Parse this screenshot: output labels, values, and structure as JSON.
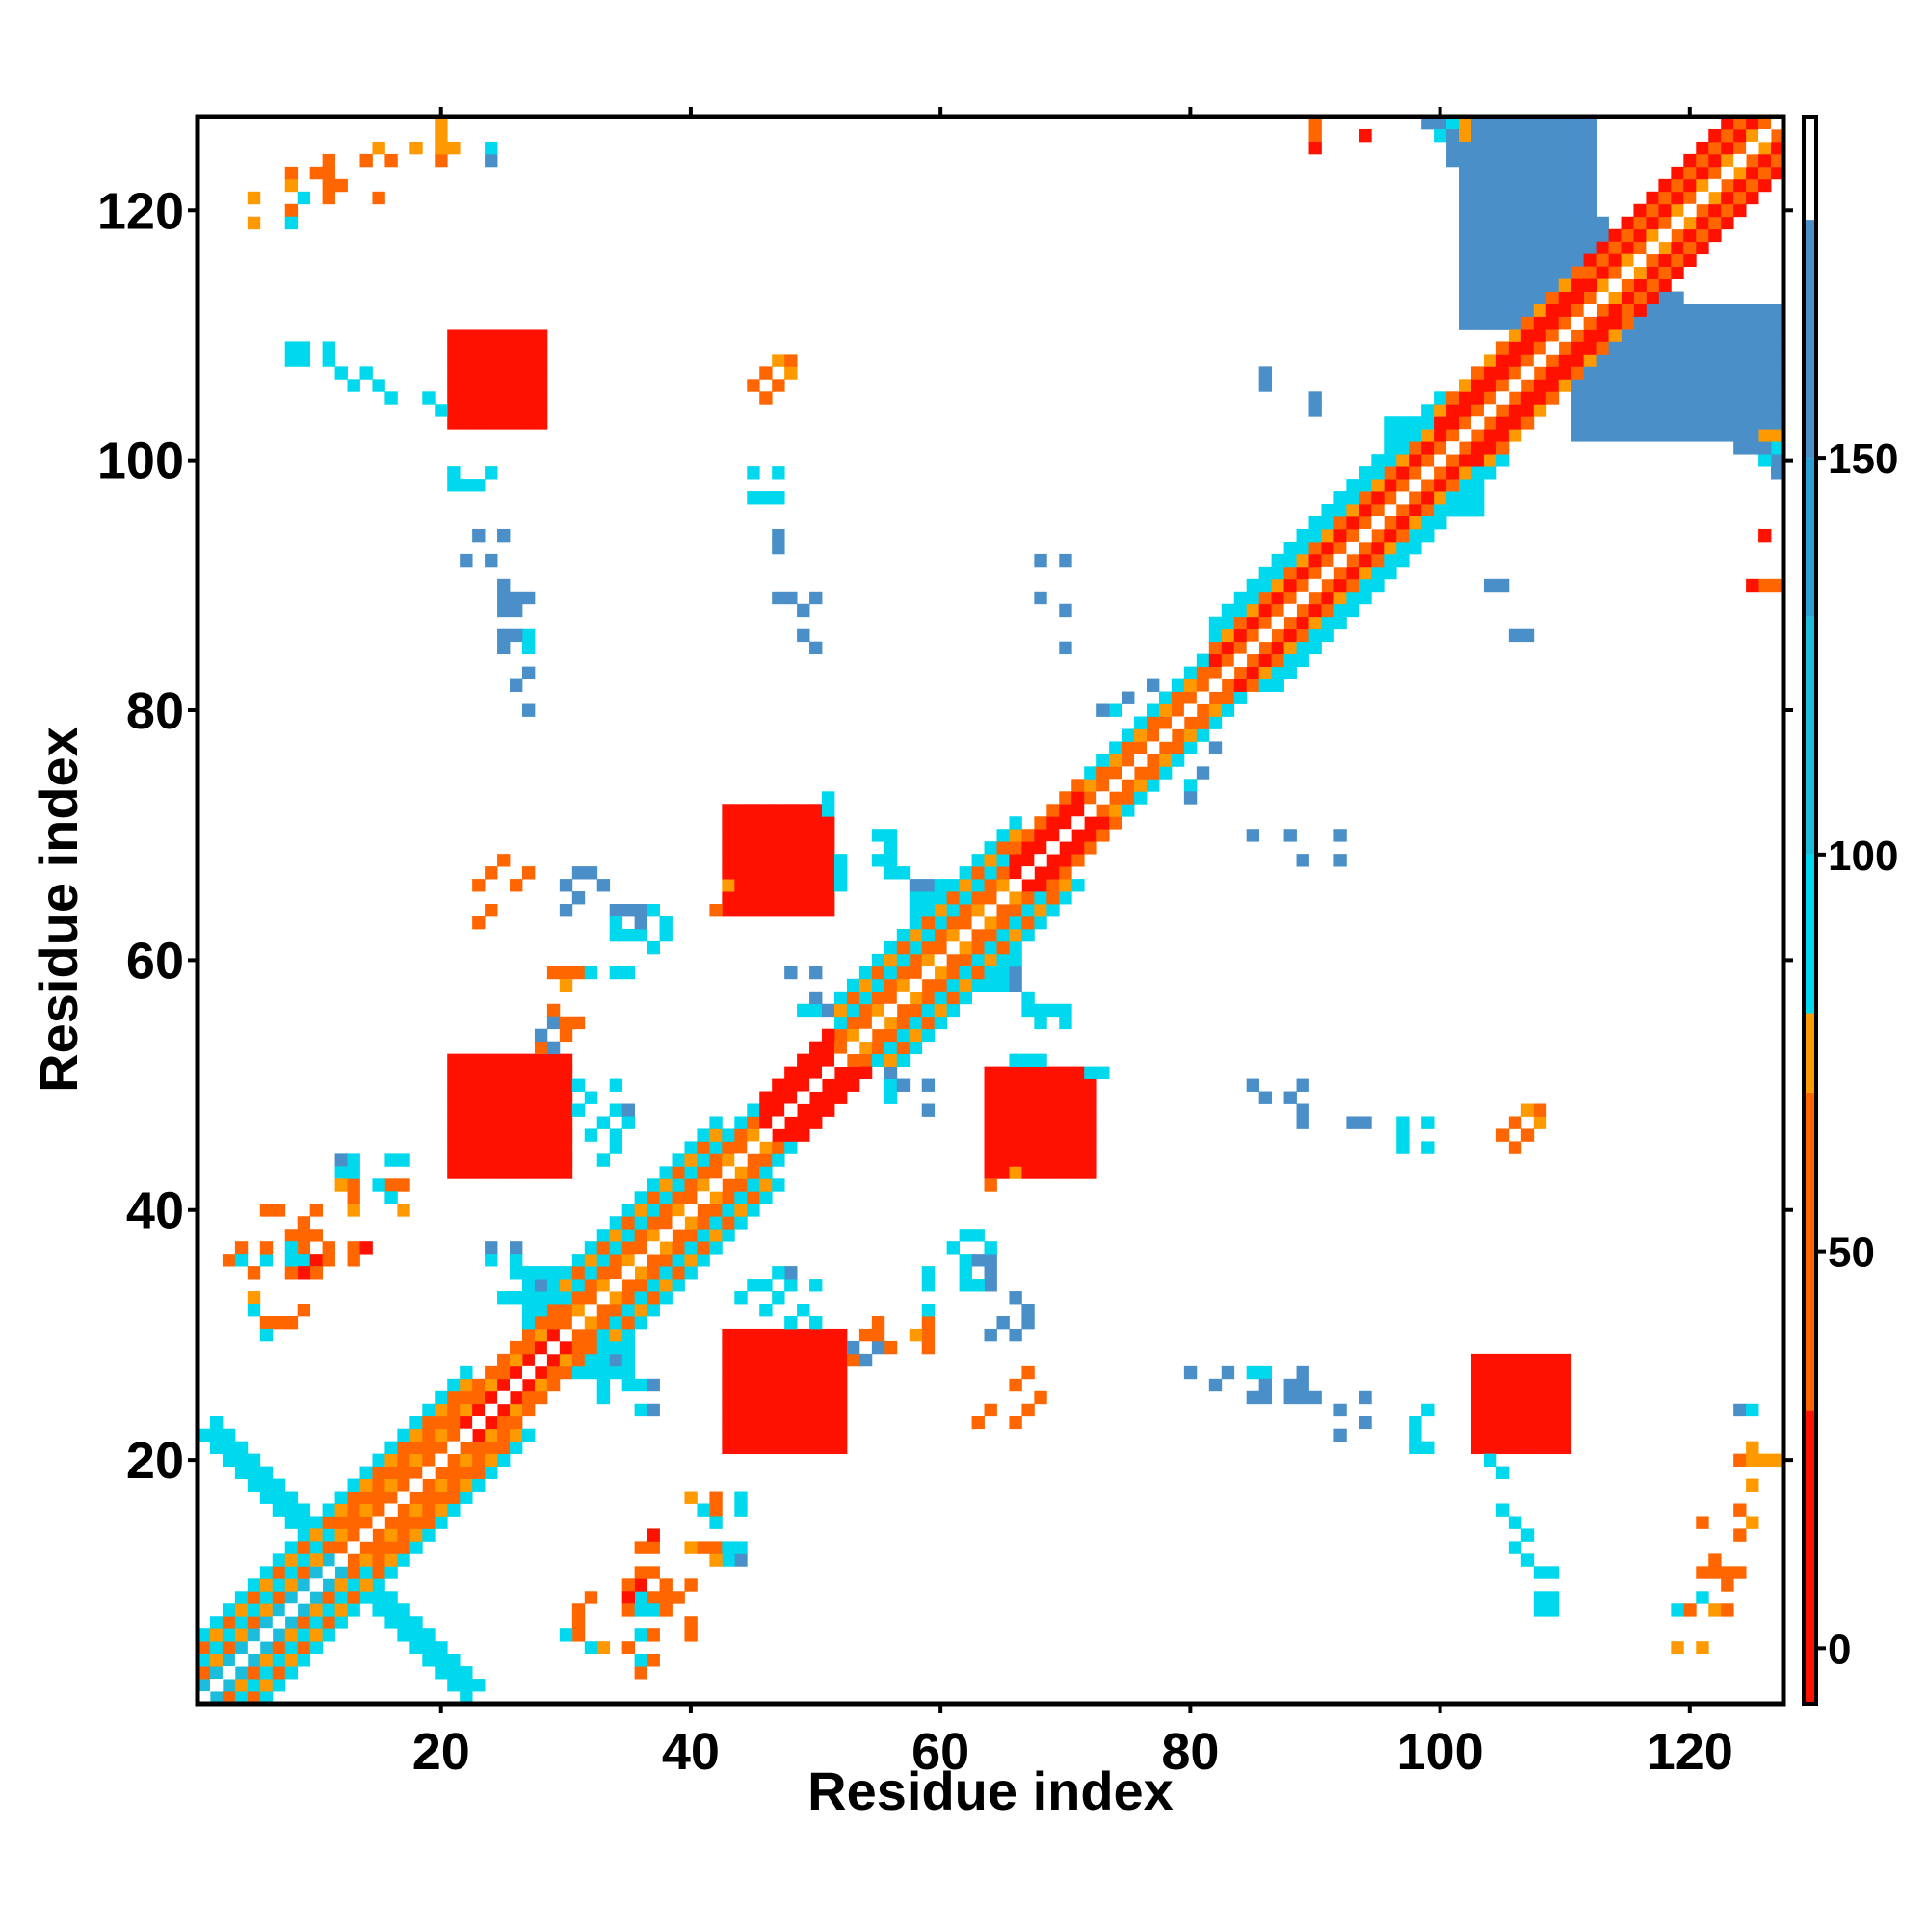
{
  "chart_data": {
    "type": "heatmap",
    "title": "",
    "xlabel": "Residue index",
    "ylabel": "Residue index",
    "xlim": [
      1,
      127
    ],
    "ylim": [
      1,
      127
    ],
    "x_ticks": [
      "20",
      "40",
      "60",
      "80",
      "100",
      "120"
    ],
    "y_ticks": [
      "20",
      "40",
      "60",
      "80",
      "100",
      "120"
    ],
    "colorbar": {
      "ticks": [
        "0",
        "50",
        "100",
        "150"
      ],
      "range": [
        -7,
        193
      ],
      "segments": [
        {
          "from": -7,
          "to": 30,
          "color": "#ff1100"
        },
        {
          "from": 30,
          "to": 70,
          "color": "#ff6600"
        },
        {
          "from": 70,
          "to": 80,
          "color": "#ff9900"
        },
        {
          "from": 80,
          "to": 100,
          "color": "#00d8ee"
        },
        {
          "from": 100,
          "to": 130,
          "color": "#1cbcdc"
        },
        {
          "from": 130,
          "to": 150,
          "color": "#2a9fd4"
        },
        {
          "from": 150,
          "to": 180,
          "color": "#4a8fc8"
        },
        {
          "from": 180,
          "to": 193,
          "color": "#ffffff"
        }
      ]
    },
    "grid": false,
    "legend": "colorbar-right",
    "diagonal_bands": [
      {
        "from": 1,
        "to": 12,
        "offsets": {
          "1": 100,
          "2": 65,
          "3": 90,
          "4": 60,
          "5": 90
        }
      },
      {
        "from": 12,
        "to": 22,
        "offsets": {
          "1": 40,
          "2": 60,
          "3": 30,
          "4": 60,
          "5": 90
        }
      },
      {
        "from": 22,
        "to": 30,
        "offsets": {
          "1": 10,
          "2": 60,
          "3": 40
        }
      },
      {
        "from": 30,
        "to": 42,
        "offsets": {
          "1": 60,
          "2": 40,
          "3": 90,
          "4": 60,
          "5": 90
        }
      },
      {
        "from": 42,
        "to": 50,
        "offsets": {
          "1": 60,
          "2": 40,
          "3": 90
        }
      },
      {
        "from": 46,
        "to": 52,
        "offsets": {
          "1": 10,
          "2": 5,
          "3": 20
        }
      },
      {
        "from": 52,
        "to": 66,
        "offsets": {
          "1": 60,
          "2": 40,
          "3": 90,
          "4": 60,
          "5": 90
        }
      },
      {
        "from": 66,
        "to": 72,
        "offsets": {
          "1": 10,
          "2": 20,
          "3": 40
        }
      },
      {
        "from": 72,
        "to": 82,
        "offsets": {
          "1": 40,
          "2": 60,
          "3": 90
        }
      },
      {
        "from": 82,
        "to": 100,
        "offsets": {
          "1": 40,
          "2": 20,
          "3": 60,
          "4": 90,
          "5": 90
        }
      },
      {
        "from": 100,
        "to": 112,
        "offsets": {
          "1": 40,
          "2": 20,
          "3": 10,
          "4": 60
        }
      },
      {
        "from": 112,
        "to": 127,
        "offsets": {
          "1": 60,
          "2": 10,
          "3": 40,
          "4": 10
        }
      }
    ],
    "antiparallel_bands": [
      {
        "x_from": 102,
        "x_to": 127,
        "y_from": 127,
        "y_to": 101,
        "value": 160,
        "width": 3
      },
      {
        "x_from": 2,
        "x_to": 22,
        "y_from": 22,
        "y_to": 2,
        "value": 95,
        "width": 1
      }
    ],
    "patches": [
      {
        "x": [
          22,
          28
        ],
        "y": [
          103,
          110
        ],
        "value": 20
      },
      {
        "x": [
          44,
          51
        ],
        "y": [
          22,
          30
        ],
        "value": 20
      },
      {
        "x": [
          45,
          51
        ],
        "y": [
          64,
          72
        ],
        "value": 20
      },
      {
        "x": [
          21,
          30
        ],
        "y": [
          43,
          52
        ],
        "value": 20
      },
      {
        "x": [
          64,
          72
        ],
        "y": [
          43,
          51
        ],
        "value": 20
      },
      {
        "x": [
          103,
          110
        ],
        "y": [
          21,
          28
        ],
        "value": 20
      },
      {
        "x": [
          102,
          112
        ],
        "y": [
          111,
          127
        ],
        "value": 160
      },
      {
        "x": [
          96,
          100
        ],
        "y": [
          96,
          103
        ],
        "value": 95
      },
      {
        "x": [
          27,
          33
        ],
        "y": [
          28,
          35
        ],
        "value": 95
      },
      {
        "x": [
          60,
          66
        ],
        "y": [
          58,
          65
        ],
        "value": 95
      }
    ],
    "points": [
      [
        5,
        119,
        70
      ],
      [
        8,
        120,
        60
      ],
      [
        8,
        119,
        95
      ],
      [
        11,
        121,
        60
      ],
      [
        12,
        122,
        60
      ],
      [
        15,
        121,
        60
      ],
      [
        16,
        124,
        60
      ],
      [
        20,
        124,
        60
      ],
      [
        21,
        125,
        70
      ],
      [
        24,
        124,
        150
      ],
      [
        8,
        108,
        95
      ],
      [
        9,
        108,
        95
      ],
      [
        12,
        107,
        95
      ],
      [
        13,
        106,
        95
      ],
      [
        15,
        106,
        95
      ],
      [
        16,
        105,
        95
      ],
      [
        19,
        105,
        95
      ],
      [
        20,
        104,
        95
      ],
      [
        23,
        98,
        95
      ],
      [
        24,
        99,
        95
      ],
      [
        25,
        94,
        150
      ],
      [
        23,
        94,
        150
      ],
      [
        25,
        90,
        150
      ],
      [
        26,
        89,
        150
      ],
      [
        27,
        89,
        150
      ],
      [
        25,
        86,
        150
      ],
      [
        27,
        86,
        95
      ],
      [
        27,
        85,
        95
      ],
      [
        27,
        83,
        150
      ],
      [
        45,
        106,
        60
      ],
      [
        46,
        107,
        60
      ],
      [
        47,
        108,
        70
      ],
      [
        45,
        99,
        95
      ],
      [
        47,
        99,
        95
      ],
      [
        47,
        94,
        150
      ],
      [
        47,
        89,
        150
      ],
      [
        48,
        89,
        150
      ],
      [
        50,
        89,
        150
      ],
      [
        49,
        88,
        95
      ],
      [
        49,
        86,
        150
      ],
      [
        50,
        85,
        150
      ],
      [
        68,
        92,
        150
      ],
      [
        70,
        92,
        150
      ],
      [
        68,
        89,
        150
      ],
      [
        70,
        88,
        150
      ],
      [
        70,
        85,
        150
      ],
      [
        86,
        107,
        150
      ],
      [
        90,
        105,
        150
      ],
      [
        104,
        90,
        150
      ],
      [
        106,
        86,
        150
      ],
      [
        90,
        126,
        60
      ],
      [
        90,
        125,
        20
      ],
      [
        94,
        126,
        20
      ],
      [
        100,
        126,
        95
      ],
      [
        102,
        126,
        70
      ],
      [
        126,
        94,
        20
      ],
      [
        125,
        90,
        20
      ],
      [
        127,
        90,
        60
      ],
      [
        127,
        101,
        95
      ],
      [
        127,
        102,
        70
      ],
      [
        25,
        68,
        60
      ],
      [
        24,
        67,
        60
      ],
      [
        23,
        66,
        60
      ],
      [
        31,
        67,
        150
      ],
      [
        31,
        65,
        150
      ],
      [
        34,
        64,
        150
      ],
      [
        35,
        64,
        150
      ],
      [
        34,
        62,
        95
      ],
      [
        36,
        62,
        95
      ],
      [
        37,
        61,
        95
      ],
      [
        36,
        64,
        95
      ],
      [
        37,
        64,
        95
      ],
      [
        42,
        64,
        60
      ],
      [
        34,
        59,
        95
      ],
      [
        35,
        59,
        95
      ],
      [
        29,
        59,
        60
      ],
      [
        30,
        59,
        70
      ],
      [
        30,
        58,
        60
      ],
      [
        29,
        56,
        60
      ],
      [
        29,
        55,
        150
      ],
      [
        30,
        55,
        95
      ],
      [
        30,
        54,
        95
      ],
      [
        28,
        53,
        60
      ],
      [
        31,
        50,
        95
      ],
      [
        32,
        49,
        95
      ],
      [
        34,
        50,
        95
      ],
      [
        34,
        48,
        95
      ],
      [
        35,
        48,
        150
      ],
      [
        35,
        47,
        150
      ],
      [
        48,
        59,
        150
      ],
      [
        49,
        56,
        95
      ],
      [
        50,
        56,
        95
      ],
      [
        51,
        56,
        95
      ],
      [
        52,
        54,
        95
      ],
      [
        55,
        70,
        95
      ],
      [
        56,
        69,
        95
      ],
      [
        56,
        68,
        95
      ],
      [
        57,
        67,
        95
      ],
      [
        58,
        66,
        150
      ],
      [
        59,
        66,
        150
      ],
      [
        60,
        66,
        95
      ],
      [
        61,
        66,
        95
      ],
      [
        61,
        64,
        95
      ],
      [
        62,
        63,
        95
      ],
      [
        56,
        51,
        150
      ],
      [
        57,
        50,
        150
      ],
      [
        59,
        50,
        150
      ],
      [
        59,
        48,
        150
      ],
      [
        67,
        56,
        95
      ],
      [
        68,
        56,
        95
      ],
      [
        70,
        56,
        95
      ],
      [
        68,
        55,
        95
      ],
      [
        66,
        52,
        95
      ],
      [
        67,
        52,
        95
      ],
      [
        68,
        52,
        95
      ],
      [
        72,
        51,
        95
      ],
      [
        73,
        51,
        95
      ],
      [
        63,
        58,
        60
      ],
      [
        66,
        43,
        70
      ],
      [
        85,
        70,
        150
      ],
      [
        88,
        70,
        150
      ],
      [
        89,
        68,
        150
      ],
      [
        92,
        70,
        150
      ],
      [
        92,
        68,
        150
      ],
      [
        85,
        50,
        150
      ],
      [
        86,
        49,
        150
      ],
      [
        88,
        49,
        150
      ],
      [
        89,
        48,
        150
      ],
      [
        89,
        47,
        150
      ],
      [
        93,
        47,
        150
      ],
      [
        97,
        47,
        95
      ],
      [
        97,
        46,
        95
      ],
      [
        97,
        45,
        95
      ],
      [
        107,
        48,
        70
      ],
      [
        108,
        48,
        60
      ],
      [
        106,
        47,
        60
      ],
      [
        105,
        46,
        60
      ],
      [
        81,
        75,
        150
      ],
      [
        82,
        77,
        150
      ],
      [
        80,
        74,
        95
      ],
      [
        80,
        73,
        150
      ],
      [
        3,
        36,
        60
      ],
      [
        4,
        37,
        60
      ],
      [
        4,
        36,
        95
      ],
      [
        5,
        35,
        60
      ],
      [
        5,
        33,
        70
      ],
      [
        5,
        32,
        95
      ],
      [
        7,
        40,
        60
      ],
      [
        8,
        38,
        60
      ],
      [
        9,
        37,
        60
      ],
      [
        8,
        37,
        95
      ],
      [
        9,
        36,
        95
      ],
      [
        10,
        36,
        60
      ],
      [
        10,
        38,
        60
      ],
      [
        10,
        40,
        60
      ],
      [
        12,
        44,
        150
      ],
      [
        12,
        43,
        95
      ],
      [
        12,
        42,
        70
      ],
      [
        13,
        37,
        60
      ],
      [
        14,
        37,
        20
      ],
      [
        11,
        37,
        60
      ],
      [
        16,
        44,
        95
      ],
      [
        17,
        44,
        95
      ],
      [
        16,
        42,
        60
      ],
      [
        17,
        42,
        60
      ],
      [
        24,
        37,
        150
      ],
      [
        26,
        37,
        150
      ],
      [
        26,
        35,
        95
      ],
      [
        28,
        34,
        150
      ],
      [
        30,
        34,
        150
      ],
      [
        36,
        26,
        95
      ],
      [
        36,
        24,
        95
      ],
      [
        33,
        26,
        95
      ],
      [
        33,
        25,
        95
      ],
      [
        40,
        17,
        70
      ],
      [
        41,
        16,
        95
      ],
      [
        42,
        15,
        95
      ],
      [
        40,
        13,
        70
      ],
      [
        41,
        13,
        60
      ],
      [
        42,
        13,
        60
      ],
      [
        43,
        13,
        95
      ],
      [
        44,
        13,
        95
      ],
      [
        36,
        13,
        60
      ],
      [
        36,
        11,
        60
      ],
      [
        36,
        10,
        20
      ],
      [
        37,
        9,
        60
      ],
      [
        38,
        9,
        60
      ],
      [
        39,
        9,
        60
      ],
      [
        35,
        10,
        60
      ],
      [
        35,
        9,
        20
      ],
      [
        35,
        8,
        60
      ],
      [
        36,
        8,
        95
      ],
      [
        36,
        6,
        95
      ],
      [
        37,
        6,
        60
      ],
      [
        32,
        9,
        60
      ],
      [
        31,
        8,
        60
      ],
      [
        31,
        7,
        60
      ],
      [
        31,
        6,
        60
      ],
      [
        30,
        6,
        95
      ],
      [
        40,
        6,
        60
      ],
      [
        44,
        33,
        95
      ],
      [
        45,
        34,
        95
      ],
      [
        46,
        34,
        95
      ],
      [
        47,
        35,
        95
      ],
      [
        47,
        33,
        95
      ],
      [
        46,
        32,
        95
      ],
      [
        48,
        31,
        95
      ],
      [
        50,
        31,
        95
      ],
      [
        54,
        30,
        60
      ],
      [
        55,
        31,
        60
      ],
      [
        55,
        30,
        60
      ],
      [
        53,
        29,
        150
      ],
      [
        54,
        28,
        150
      ],
      [
        58,
        30,
        70
      ],
      [
        59,
        31,
        60
      ],
      [
        59,
        30,
        60
      ],
      [
        59,
        32,
        95
      ],
      [
        63,
        34,
        95
      ],
      [
        62,
        35,
        95
      ],
      [
        63,
        36,
        150
      ],
      [
        64,
        36,
        150
      ],
      [
        62,
        38,
        95
      ],
      [
        63,
        38,
        95
      ],
      [
        64,
        35,
        150
      ],
      [
        66,
        33,
        150
      ],
      [
        67,
        32,
        150
      ],
      [
        64,
        30,
        150
      ],
      [
        66,
        30,
        150
      ],
      [
        63,
        23,
        60
      ],
      [
        64,
        24,
        60
      ],
      [
        66,
        26,
        60
      ],
      [
        67,
        27,
        60
      ],
      [
        80,
        27,
        150
      ],
      [
        82,
        26,
        150
      ],
      [
        83,
        27,
        150
      ],
      [
        86,
        26,
        150
      ],
      [
        85,
        25,
        150
      ],
      [
        88,
        26,
        150
      ],
      [
        88,
        25,
        150
      ],
      [
        89,
        25,
        150
      ],
      [
        92,
        24,
        150
      ],
      [
        92,
        22,
        150
      ],
      [
        98,
        22,
        95
      ],
      [
        99,
        21,
        95
      ],
      [
        98,
        21,
        95
      ],
      [
        104,
        20,
        95
      ],
      [
        105,
        19,
        95
      ],
      [
        106,
        15,
        95
      ],
      [
        107,
        14,
        95
      ],
      [
        107,
        12,
        95
      ],
      [
        108,
        11,
        95
      ],
      [
        109,
        11,
        95
      ],
      [
        109,
        9,
        95
      ],
      [
        109,
        8,
        95
      ],
      [
        121,
        9,
        95
      ],
      [
        122,
        8,
        70
      ],
      [
        123,
        8,
        60
      ],
      [
        122,
        11,
        60
      ],
      [
        123,
        11,
        60
      ],
      [
        124,
        11,
        60
      ],
      [
        123,
        10,
        60
      ],
      [
        124,
        14,
        60
      ],
      [
        125,
        15,
        70
      ],
      [
        125,
        18,
        70
      ],
      [
        126,
        20,
        70
      ],
      [
        125,
        20,
        70
      ],
      [
        127,
        20,
        70
      ],
      [
        125,
        24,
        95
      ],
      [
        121,
        5,
        70
      ]
    ]
  }
}
